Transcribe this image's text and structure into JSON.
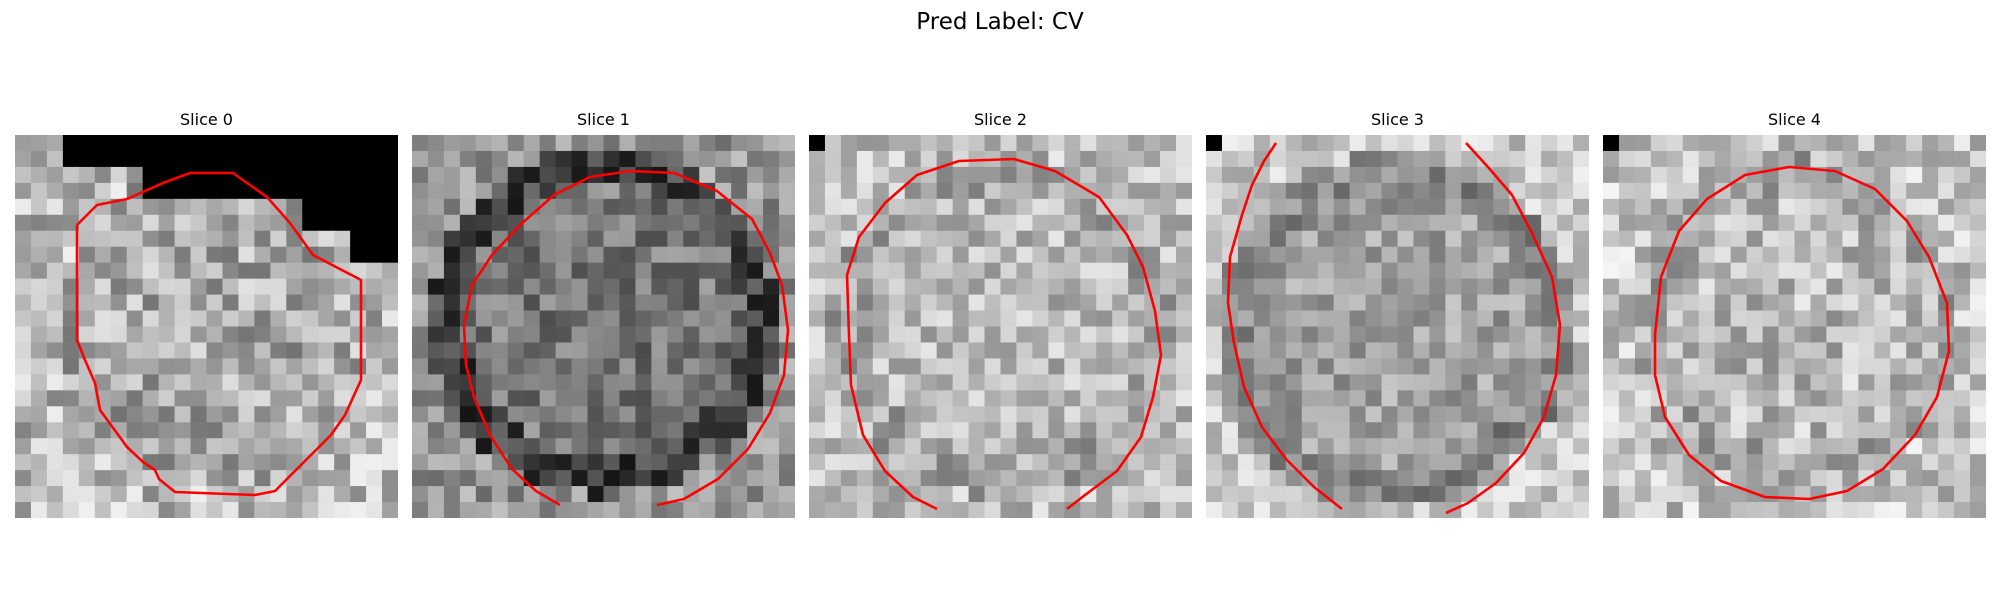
{
  "figure": {
    "title": "Pred Label: CV"
  },
  "panels": [
    {
      "title": "Slice 0"
    },
    {
      "title": "Slice 1"
    },
    {
      "title": "Slice 2"
    },
    {
      "title": "Slice 3"
    },
    {
      "title": "Slice 4"
    }
  ],
  "colors": {
    "contour": "#ff0000",
    "background": "#ffffff"
  }
}
